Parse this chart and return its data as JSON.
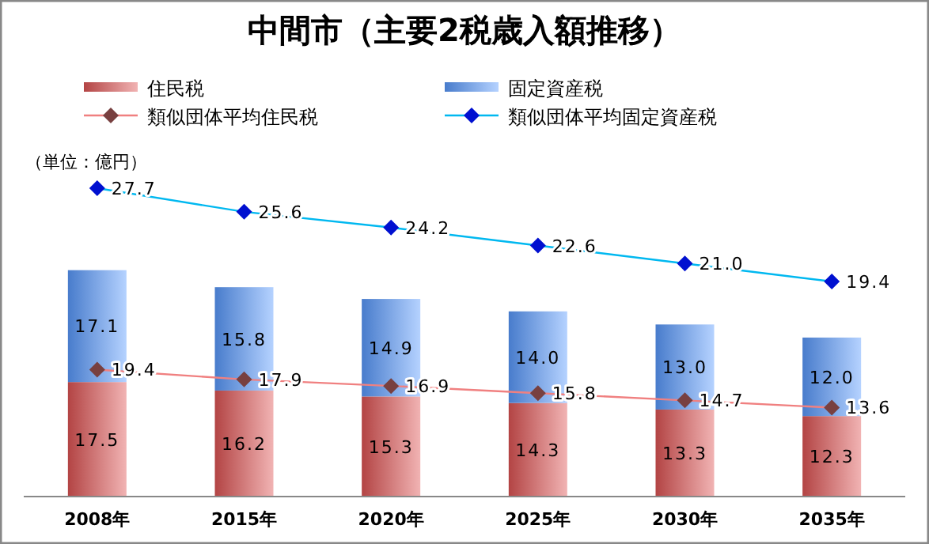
{
  "chart_data": {
    "type": "bar",
    "title": "中間市（主要2税歳入額推移）",
    "stacked": true,
    "legend": "top",
    "marker": "diamond",
    "annotations": [
      "（単位：億円）"
    ],
    "categories": [
      "2008年",
      "2015年",
      "2020年",
      "2025年",
      "2030年",
      "2035年"
    ],
    "series": [
      {
        "name": "住民税",
        "color": "#e05555",
        "values": [
          17.5,
          16.2,
          15.3,
          14.3,
          13.3,
          12.3
        ],
        "value_labels": [
          "17.5",
          "16.2",
          "15.3",
          "14.3",
          "13.3",
          "12.3"
        ]
      },
      {
        "name": "固定資産税",
        "color": "#5a9bff",
        "values": [
          17.1,
          15.8,
          14.9,
          14.0,
          13.0,
          12.0
        ],
        "value_labels": [
          "17.1",
          "15.8",
          "14.9",
          "14.0",
          "13.0",
          "12.0"
        ]
      },
      {
        "name": "類似団体平均住民税",
        "type": "line",
        "color": "#f08080",
        "values": [
          19.4,
          17.9,
          16.9,
          15.8,
          14.7,
          13.6
        ],
        "value_labels": [
          "19.4",
          "17.9",
          "16.9",
          "15.8",
          "14.7",
          "13.6"
        ]
      },
      {
        "name": "類似団体平均固定資産税",
        "type": "line",
        "axis": "y2",
        "color": "#00b8f0",
        "values": [
          27.7,
          25.6,
          24.2,
          22.6,
          21.0,
          19.4
        ],
        "value_labels": [
          "27.7",
          "25.6",
          "24.2",
          "22.6",
          "21.0",
          "19.4"
        ]
      }
    ]
  }
}
